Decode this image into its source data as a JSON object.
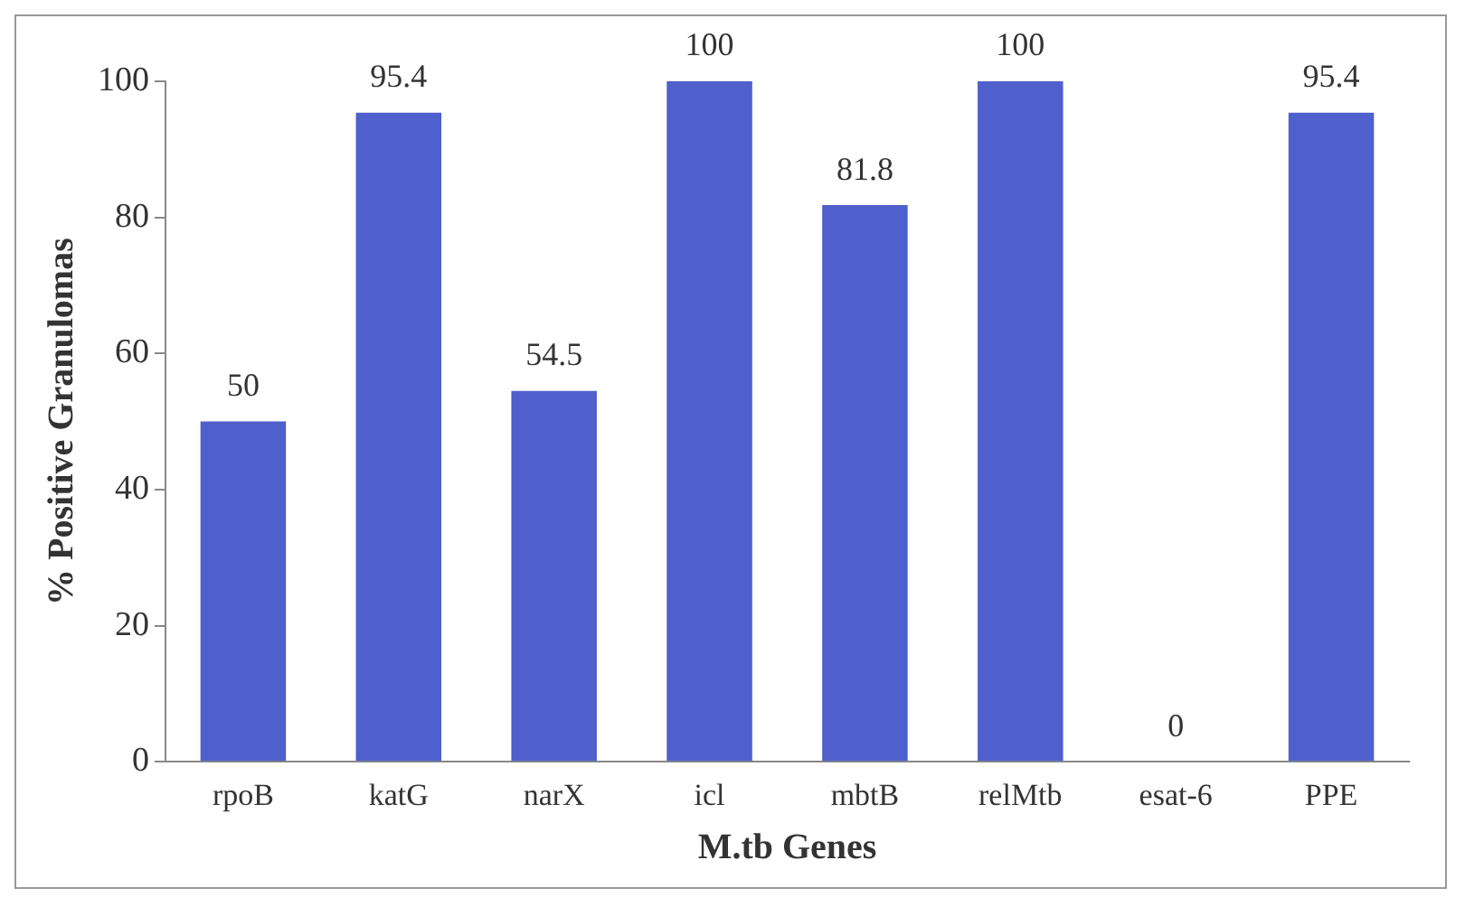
{
  "chart_data": {
    "type": "bar",
    "xlabel": "M.tb Genes",
    "ylabel": "% Positive Granulomas",
    "categories": [
      "rpoB",
      "katG",
      "narX",
      "icl",
      "mbtB",
      "relMtb",
      "esat-6",
      "PPE"
    ],
    "values": [
      50,
      95.4,
      54.5,
      100,
      81.8,
      100,
      0,
      95.4
    ],
    "color": "#4f5fcb",
    "ylim": [
      0,
      100
    ],
    "yticks": [
      0,
      20,
      40,
      60,
      80,
      100
    ],
    "grid": false,
    "legend": false,
    "data_labels": true
  }
}
